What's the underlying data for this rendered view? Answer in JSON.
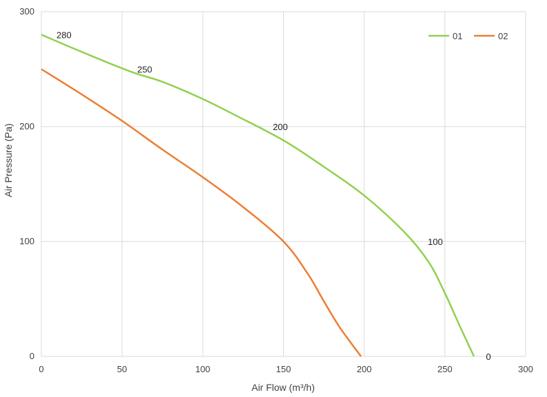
{
  "chart_data": {
    "type": "line",
    "title": "",
    "xlabel": "Air Flow  (m³/h)",
    "ylabel": "Air Pressure  (Pa)",
    "xlim": [
      0,
      300
    ],
    "ylim": [
      0,
      300
    ],
    "x_ticks": [
      0,
      50,
      100,
      150,
      200,
      250,
      300
    ],
    "y_ticks": [
      0,
      100,
      200,
      300
    ],
    "grid": true,
    "legend_position": "top-right",
    "series": [
      {
        "name": "01",
        "color": "#8fd14f",
        "points": [
          [
            0,
            280
          ],
          [
            25,
            265
          ],
          [
            55,
            248
          ],
          [
            75,
            239
          ],
          [
            100,
            224
          ],
          [
            120,
            210
          ],
          [
            150,
            188
          ],
          [
            175,
            165
          ],
          [
            200,
            140
          ],
          [
            225,
            108
          ],
          [
            240,
            82
          ],
          [
            250,
            55
          ],
          [
            260,
            24
          ],
          [
            268,
            0
          ]
        ]
      },
      {
        "name": "02",
        "color": "#ed7d31",
        "points": [
          [
            0,
            250
          ],
          [
            25,
            228
          ],
          [
            50,
            205
          ],
          [
            75,
            180
          ],
          [
            100,
            156
          ],
          [
            125,
            130
          ],
          [
            150,
            100
          ],
          [
            165,
            72
          ],
          [
            175,
            48
          ],
          [
            185,
            25
          ],
          [
            198,
            0
          ]
        ]
      }
    ],
    "annotations": [
      {
        "text": "280",
        "x": 6,
        "y": 280
      },
      {
        "text": "250",
        "x": 56,
        "y": 250
      },
      {
        "text": "200",
        "x": 140,
        "y": 200
      },
      {
        "text": "100",
        "x": 236,
        "y": 100
      },
      {
        "text": "0",
        "x": 272,
        "y": 0
      }
    ]
  }
}
